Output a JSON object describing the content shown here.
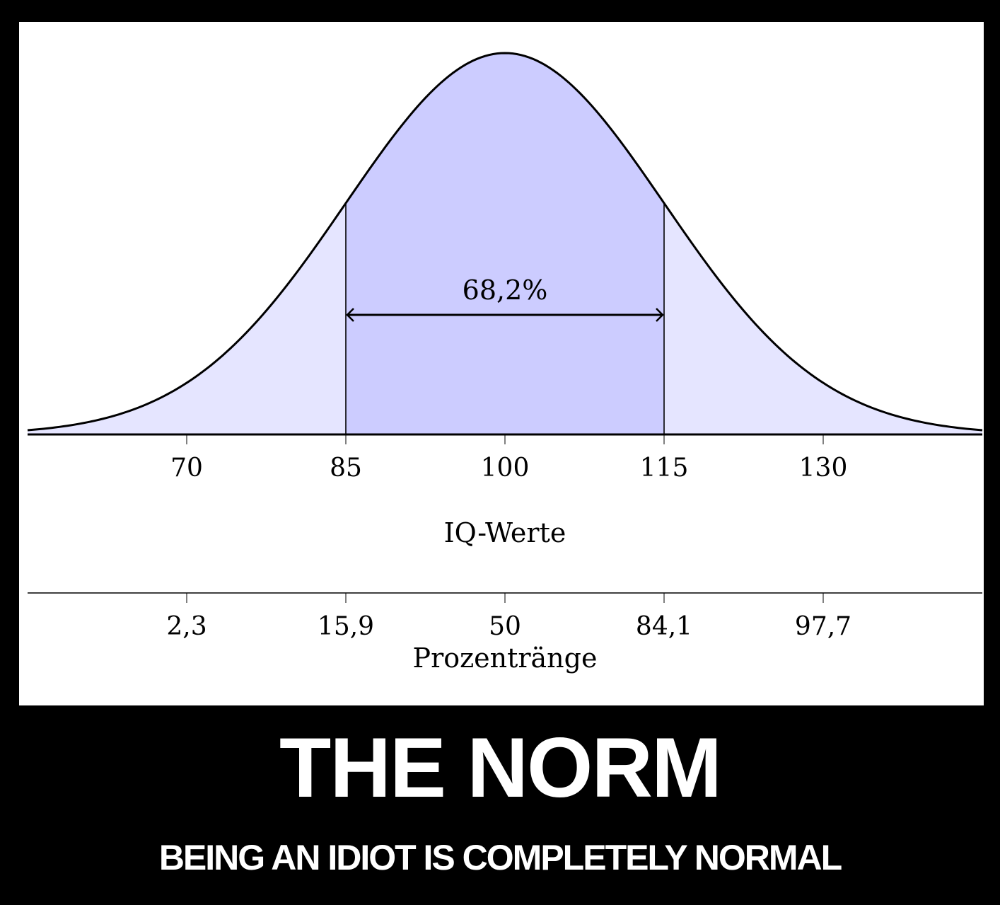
{
  "poster": {
    "title": "THE NORM",
    "subtitle": "BEING AN IDIOT IS COMPLETELY NORMAL"
  },
  "colors": {
    "background": "#000000",
    "panel": "#ffffff",
    "inner_fill": "#ccccff",
    "outer_fill": "#e5e5ff",
    "line": "#000000"
  },
  "chart_data": {
    "type": "area",
    "distribution": "normal",
    "mean": 100,
    "sd": 15,
    "xlim": [
      55,
      145
    ],
    "iq_axis": {
      "label": "IQ-Werte",
      "ticks": [
        70,
        85,
        100,
        115,
        130
      ],
      "tick_labels": [
        "70",
        "85",
        "100",
        "115",
        "130"
      ]
    },
    "percentile_axis": {
      "label": "Prozentränge",
      "tick_labels": [
        "2,3",
        "15,9",
        "50",
        "84,1",
        "97,7"
      ]
    },
    "highlight": {
      "from": 85,
      "to": 115,
      "label": "68,2%"
    },
    "grid": false
  }
}
